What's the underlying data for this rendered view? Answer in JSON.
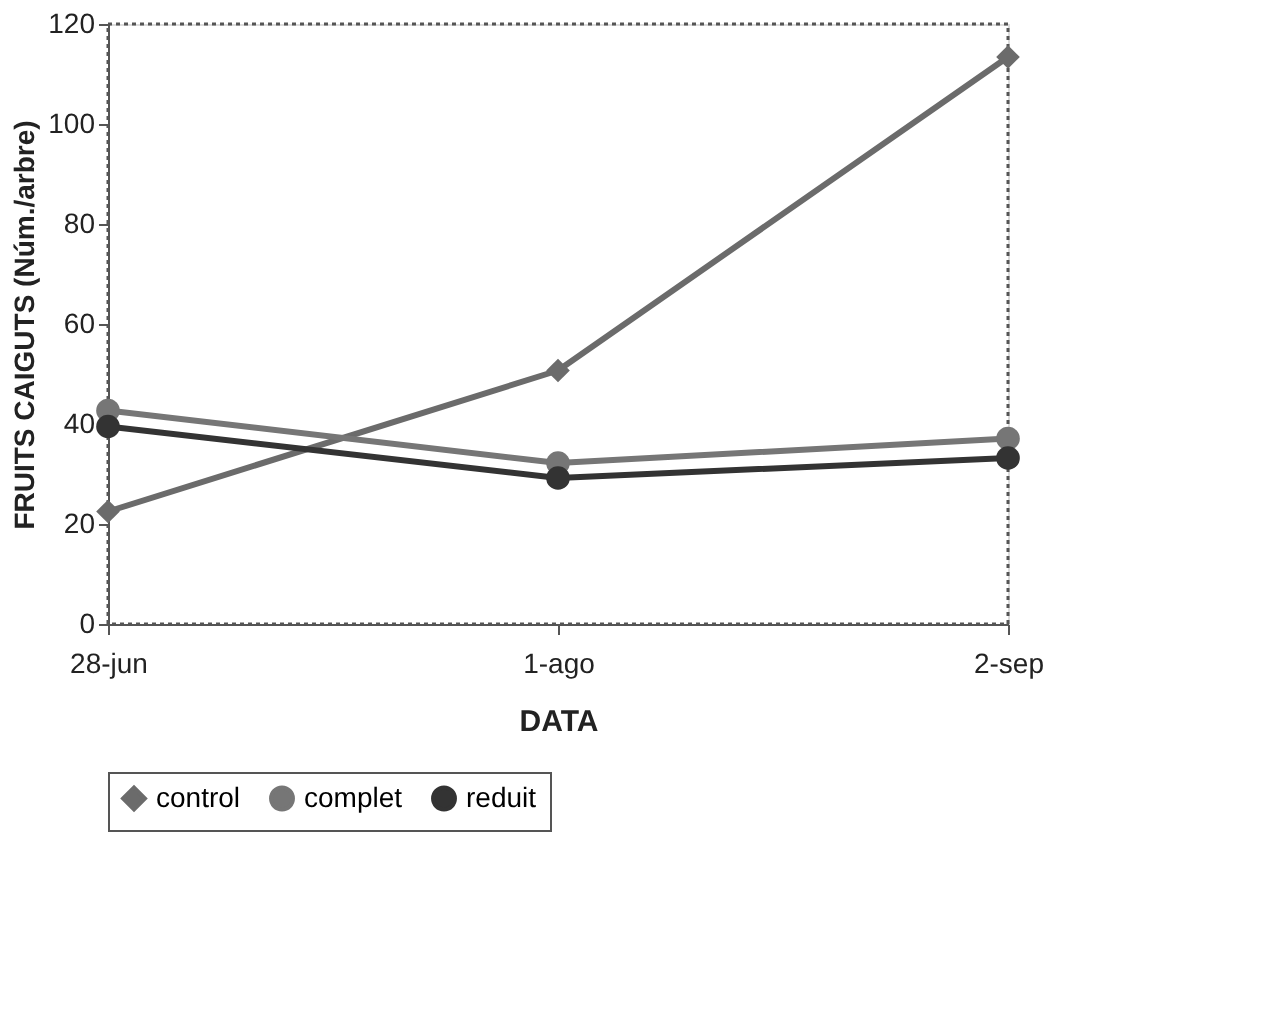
{
  "chart_data": {
    "type": "line",
    "xlabel": "DATA",
    "ylabel": "FRUITS CAIGUTS (Núm./arbre)",
    "categories": [
      "28-jun",
      "1-ago",
      "2-sep"
    ],
    "series": [
      {
        "name": "control",
        "color": "#6b6b6b",
        "marker": "diamond",
        "values": [
          22.5,
          50.7,
          113.4
        ]
      },
      {
        "name": "complet",
        "color": "#767676",
        "marker": "circle",
        "values": [
          42.7,
          32.2,
          37.1
        ]
      },
      {
        "name": "reduit",
        "color": "#333333",
        "marker": "circle",
        "values": [
          39.5,
          29.2,
          33.2
        ]
      }
    ],
    "ylim": [
      0,
      120
    ],
    "yticks": [
      0,
      20,
      40,
      60,
      80,
      100,
      120
    ],
    "grid": false,
    "legend": "bottom",
    "line_style": "solid"
  }
}
